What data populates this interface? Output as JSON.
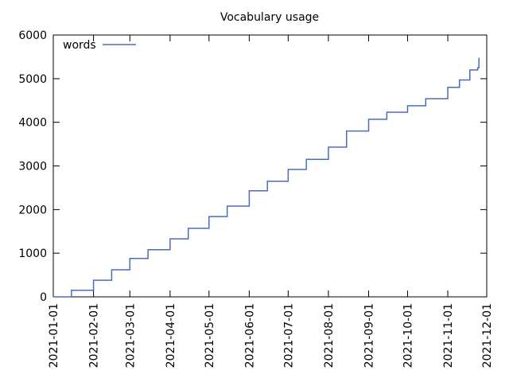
{
  "chart_data": {
    "type": "line",
    "title": "Vocabulary usage",
    "line_style": "steps",
    "legend": "top-left",
    "grid": false,
    "x": [
      "2021-01-01",
      "2021-01-15",
      "2021-02-01",
      "2021-02-15",
      "2021-03-01",
      "2021-03-15",
      "2021-04-01",
      "2021-04-15",
      "2021-05-01",
      "2021-05-15",
      "2021-06-01",
      "2021-06-15",
      "2021-07-01",
      "2021-07-15",
      "2021-08-01",
      "2021-08-15",
      "2021-09-01",
      "2021-09-15",
      "2021-10-01",
      "2021-10-15",
      "2021-11-01",
      "2021-11-10",
      "2021-11-18",
      "2021-11-24",
      "2021-11-25"
    ],
    "series": [
      {
        "name": "words",
        "color": "#4a6cbf",
        "values": [
          0,
          150,
          380,
          620,
          880,
          1080,
          1330,
          1570,
          1840,
          2080,
          2430,
          2650,
          2920,
          3150,
          3430,
          3800,
          4070,
          4230,
          4380,
          4540,
          4800,
          4970,
          5200,
          5250,
          5480
        ]
      }
    ],
    "xlim": [
      "2021-01-01",
      "2021-12-01"
    ],
    "xticks": [
      "2021-01-01",
      "2021-02-01",
      "2021-03-01",
      "2021-04-01",
      "2021-05-01",
      "2021-06-01",
      "2021-07-01",
      "2021-08-01",
      "2021-09-01",
      "2021-10-01",
      "2021-11-01",
      "2021-12-01"
    ],
    "ylim": [
      0,
      6000
    ],
    "yticks": [
      0,
      1000,
      2000,
      3000,
      4000,
      5000,
      6000
    ]
  }
}
